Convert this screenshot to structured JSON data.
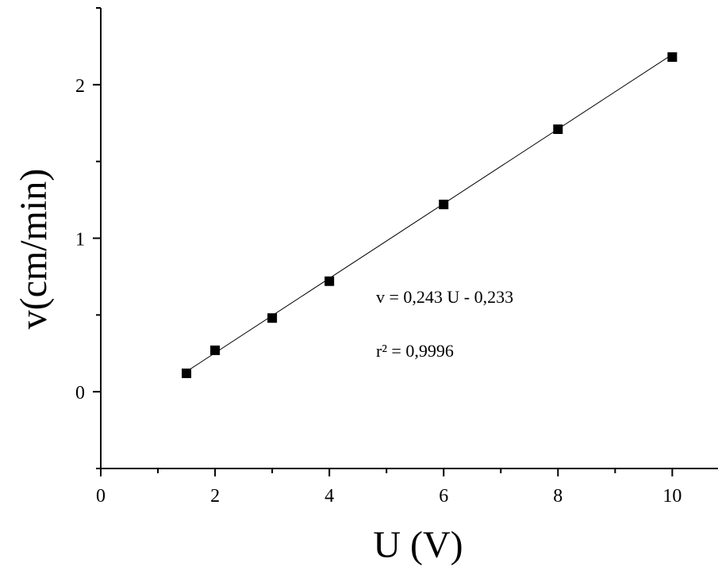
{
  "chart_data": {
    "type": "scatter",
    "xlabel": "U (V)",
    "ylabel": "v(cm/min)",
    "xlim": [
      0,
      10.8
    ],
    "ylim": [
      -0.5,
      2.5
    ],
    "x_ticks": [
      "0",
      "2",
      "4",
      "6",
      "8",
      "10"
    ],
    "y_ticks": [
      "0",
      "1",
      "2"
    ],
    "series": [
      {
        "x": [
          1.5,
          2.0,
          3.0,
          4.0,
          6.0,
          8.0,
          10.0
        ],
        "y": [
          0.12,
          0.27,
          0.48,
          0.72,
          1.22,
          1.71,
          2.18
        ],
        "marker": "square",
        "color": "#000000"
      }
    ],
    "fit": {
      "slope": 0.243,
      "intercept": -0.233
    },
    "annotations": {
      "equation": "v = 0,243 U - 0,233",
      "r2": "r² = 0,9996"
    },
    "grid": false
  }
}
